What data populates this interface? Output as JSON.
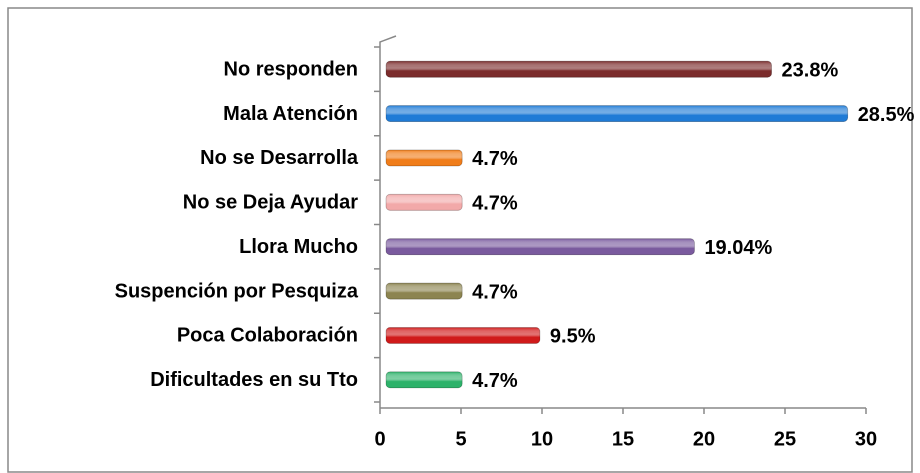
{
  "chart_data": {
    "type": "bar",
    "orientation": "horizontal",
    "categories": [
      "No responden",
      "Mala Atención",
      "No se Desarrolla",
      "No se Deja Ayudar",
      "Llora Mucho",
      "Suspención por Pesquiza",
      "Poca Colaboración",
      "Dificultades en su Tto"
    ],
    "values": [
      23.8,
      28.5,
      4.7,
      4.7,
      19.04,
      4.7,
      9.5,
      4.7
    ],
    "value_labels": [
      "23.8%",
      "28.5%",
      "4.7%",
      "4.7%",
      "19.04%",
      "4.7%",
      "9.5%",
      "4.7%"
    ],
    "colors": [
      "#7b2c2c",
      "#1f7bd6",
      "#f07d1a",
      "#f2a9a9",
      "#7a5a9e",
      "#8c8450",
      "#d01a1a",
      "#2db26a"
    ],
    "xlim": [
      0,
      30
    ],
    "xticks": [
      0,
      5,
      10,
      15,
      20,
      25,
      30
    ],
    "grid": false
  }
}
